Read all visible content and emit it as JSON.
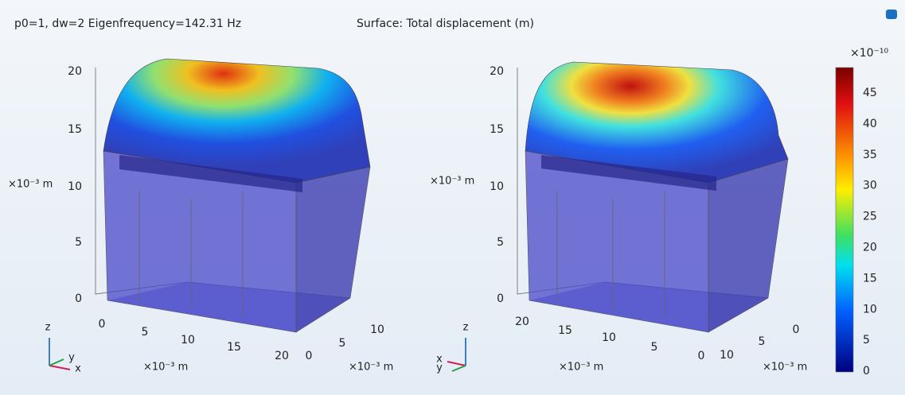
{
  "header": {
    "title": "p0=1, dw=2 Eigenfrequency=142.31 Hz",
    "plot_label": "Surface: Total displacement (m)"
  },
  "plots": [
    {
      "z_ticks": [
        20,
        15,
        10,
        5,
        0
      ],
      "z_unit": "×10⁻³ m",
      "x_ticks": [
        0,
        5,
        10,
        15,
        20
      ],
      "x_unit": "×10⁻³ m",
      "y_ticks": [
        0,
        5,
        10
      ],
      "y_unit": "×10⁻³ m",
      "triad": {
        "z": "z",
        "y": "y",
        "x": "x"
      }
    },
    {
      "z_ticks": [
        20,
        15,
        10,
        5,
        0
      ],
      "z_unit": "×10⁻³ m",
      "x_ticks": [
        20,
        15,
        10,
        5,
        0
      ],
      "x_unit": "×10⁻³ m",
      "y_ticks": [
        10,
        5,
        0
      ],
      "y_unit": "×10⁻³ m",
      "triad": {
        "z": "z",
        "y": "y",
        "x": "x"
      }
    }
  ],
  "colorbar": {
    "multiplier": "×10⁻¹⁰",
    "ticks": [
      45,
      40,
      35,
      30,
      25,
      20,
      15,
      10,
      5,
      0
    ]
  }
}
